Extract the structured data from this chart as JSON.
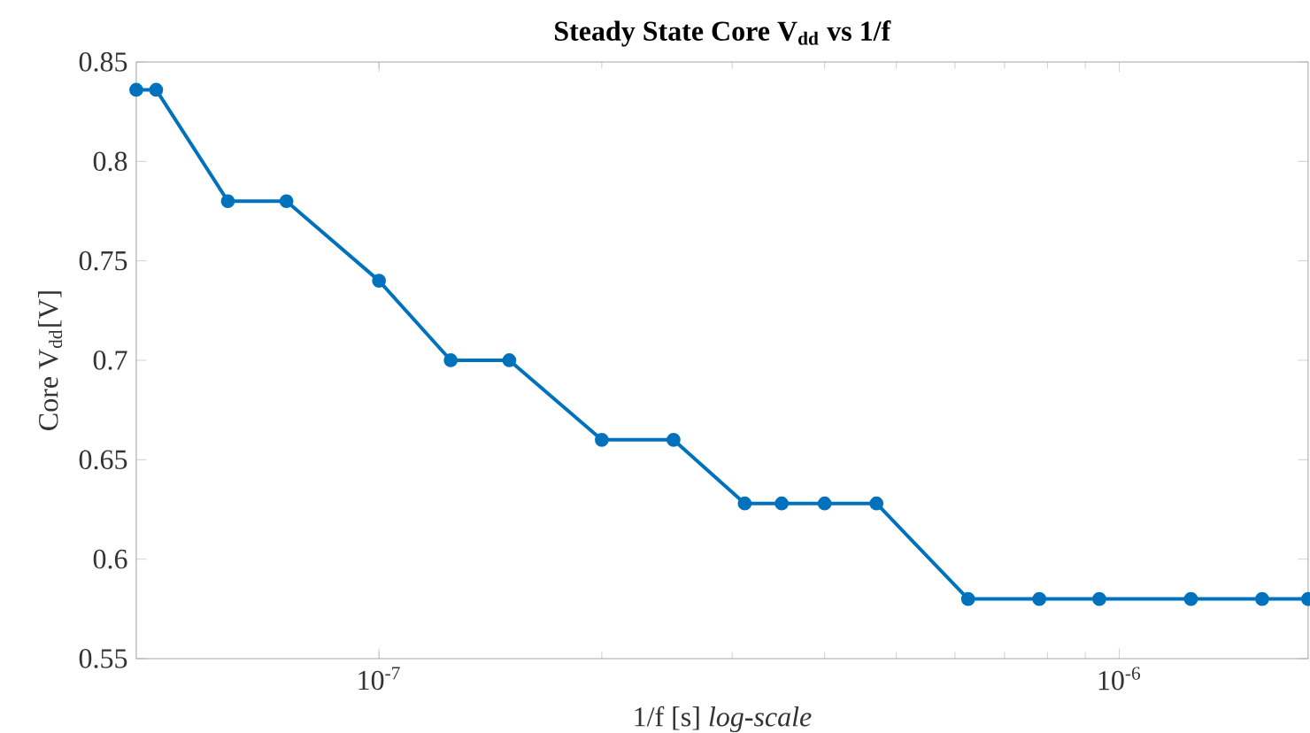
{
  "chart_data": {
    "type": "line",
    "title": "**Steady State Core V$_{dd}$ vs 1/f**",
    "xlabel": "1/f [s] *log-scale*",
    "ylabel": "Core V$_{dd}$[V]",
    "x": [
      4.7e-08,
      5e-08,
      6.25e-08,
      7.5e-08,
      1e-07,
      1.25e-07,
      1.5e-07,
      2e-07,
      2.5e-07,
      3.12e-07,
      3.5e-07,
      4e-07,
      4.7e-07,
      6.25e-07,
      7.8e-07,
      9.4e-07,
      1.25e-06,
      1.56e-06,
      1.8e-06
    ],
    "series": [
      {
        "color": "#0072bd",
        "values": [
          0.836,
          0.836,
          0.78,
          0.78,
          0.74,
          0.7,
          0.7,
          0.66,
          0.66,
          0.628,
          0.628,
          0.628,
          0.628,
          0.58,
          0.58,
          0.58,
          0.58,
          0.58,
          0.58
        ]
      }
    ],
    "log": "x",
    "xlim": [
      4.7e-08,
      1.8e-06
    ],
    "ylim": [
      0.55,
      0.85
    ],
    "xticks": [
      {
        "value": 1e-07,
        "label": "10$^{-7}$"
      },
      {
        "value": 1e-06,
        "label": "10$^{-6}$"
      }
    ],
    "yticks": [
      0.55,
      0.6,
      0.65,
      0.7,
      0.75,
      0.8,
      0.85
    ],
    "grid": false,
    "marker": "circle",
    "line_style": "solid"
  }
}
